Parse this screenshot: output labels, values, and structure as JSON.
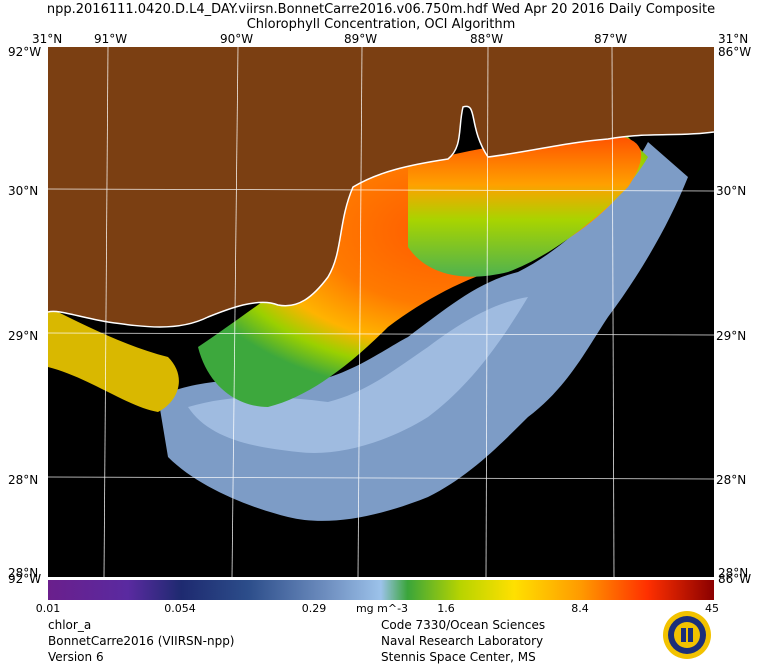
{
  "header": {
    "line1": "npp.2016111.0420.D.L4_DAY.viirsn.BonnetCarre2016.v06.750m.hdf    Wed Apr 20 2016 Daily Composite",
    "line2": "Chlorophyll Concentration, OCI Algorithm"
  },
  "map": {
    "top_corner_left": "31°N",
    "top_corner_left_under": "92°W",
    "top_corner_right": "31°N",
    "top_corner_right_under": "86°W",
    "bottom_corner_left": "28°N",
    "bottom_corner_left_under": "92°W",
    "bottom_corner_right": "28°N",
    "bottom_corner_right_under": "86°W",
    "lon_labels": [
      "91°W",
      "90°W",
      "89°W",
      "88°W",
      "87°W"
    ],
    "lat_labels": [
      "30°N",
      "29°N",
      "28°N"
    ],
    "colors": {
      "land": "#7b3f12",
      "no_data": "#000000",
      "coast": "#ffffff",
      "grid": "#ffffff"
    }
  },
  "colorbar": {
    "ticks": [
      "0.01",
      "0.054",
      "0.29",
      "1.6",
      "8.4",
      "45"
    ],
    "unit": "mg m^-3"
  },
  "footer": {
    "left": [
      "chlor_a",
      "BonnetCarre2016 (VIIRSN-npp)",
      "Version 6"
    ],
    "right": [
      "Code 7330/Ocean Sciences",
      "Naval Research Laboratory",
      "Stennis Space Center, MS"
    ]
  }
}
